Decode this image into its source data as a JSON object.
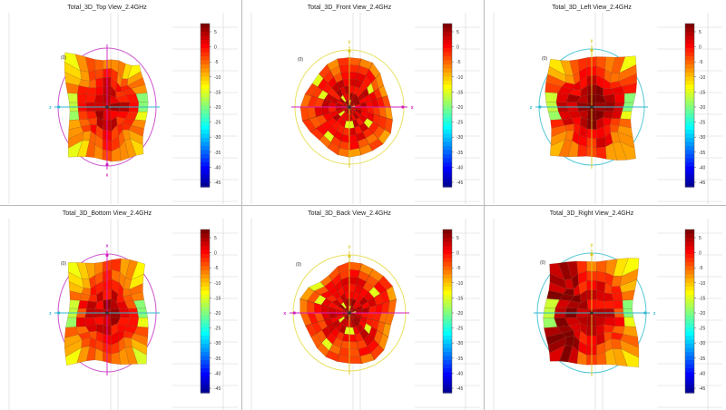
{
  "colors": {
    "circle_magenta": "#cc55cc",
    "circle_yellow": "#e8e060",
    "circle_cyan": "#55c8d8",
    "axis_magenta": "#d020c0",
    "axis_cyan": "#30b8d0",
    "axis_yellow": "#d8c820",
    "grid": "#d4d4d4"
  },
  "colorbar": {
    "ticks": [
      "5",
      "0",
      "-5",
      "-10",
      "-15",
      "-20",
      "-25",
      "-30",
      "-35",
      "-40",
      "-45"
    ],
    "min": -45,
    "max": 5
  },
  "chart_data": [
    {
      "type": "heatmap",
      "title": "Total_3D_Top View_2.4GHz",
      "view": "top",
      "outline_circle": "magenta",
      "axes": [
        {
          "label": "z",
          "direction": "left",
          "color": "cyan"
        },
        {
          "label": "x",
          "direction": "down",
          "color": "magenta"
        }
      ],
      "marker": "(0)",
      "gain_range_dB": [
        -45,
        5
      ]
    },
    {
      "type": "heatmap",
      "title": "Total_3D_Front View_2.4GHz",
      "view": "front",
      "outline_circle": "yellow",
      "axes": [
        {
          "label": "y",
          "direction": "up",
          "color": "yellow"
        },
        {
          "label": "x",
          "direction": "right",
          "color": "magenta"
        }
      ],
      "marker": "(0)",
      "gain_range_dB": [
        -45,
        5
      ]
    },
    {
      "type": "heatmap",
      "title": "Total_3D_Left View_2.4GHz",
      "view": "left",
      "outline_circle": "cyan",
      "axes": [
        {
          "label": "z",
          "direction": "left",
          "color": "cyan"
        },
        {
          "label": "y",
          "direction": "up",
          "color": "yellow"
        }
      ],
      "marker": "(0)",
      "gain_range_dB": [
        -45,
        5
      ]
    },
    {
      "type": "heatmap",
      "title": "Total_3D_Bottom View_2.4GHz",
      "view": "bottom",
      "outline_circle": "magenta",
      "axes": [
        {
          "label": "x",
          "direction": "up",
          "color": "magenta"
        },
        {
          "label": "z",
          "direction": "left",
          "color": "cyan"
        }
      ],
      "marker": "(0)",
      "gain_range_dB": [
        -45,
        5
      ]
    },
    {
      "type": "heatmap",
      "title": "Total_3D_Back View_2.4GHz",
      "view": "back",
      "outline_circle": "yellow",
      "axes": [
        {
          "label": "y",
          "direction": "up",
          "color": "yellow"
        },
        {
          "label": "x",
          "direction": "left",
          "color": "magenta"
        }
      ],
      "marker": "(0)",
      "gain_range_dB": [
        -45,
        5
      ]
    },
    {
      "type": "heatmap",
      "title": "Total_3D_Right View_2.4GHz",
      "view": "right",
      "outline_circle": "cyan",
      "axes": [
        {
          "label": "y",
          "direction": "up",
          "color": "yellow"
        },
        {
          "label": "z",
          "direction": "right",
          "color": "cyan"
        }
      ],
      "marker": "(0)",
      "gain_range_dB": [
        -45,
        5
      ]
    }
  ]
}
